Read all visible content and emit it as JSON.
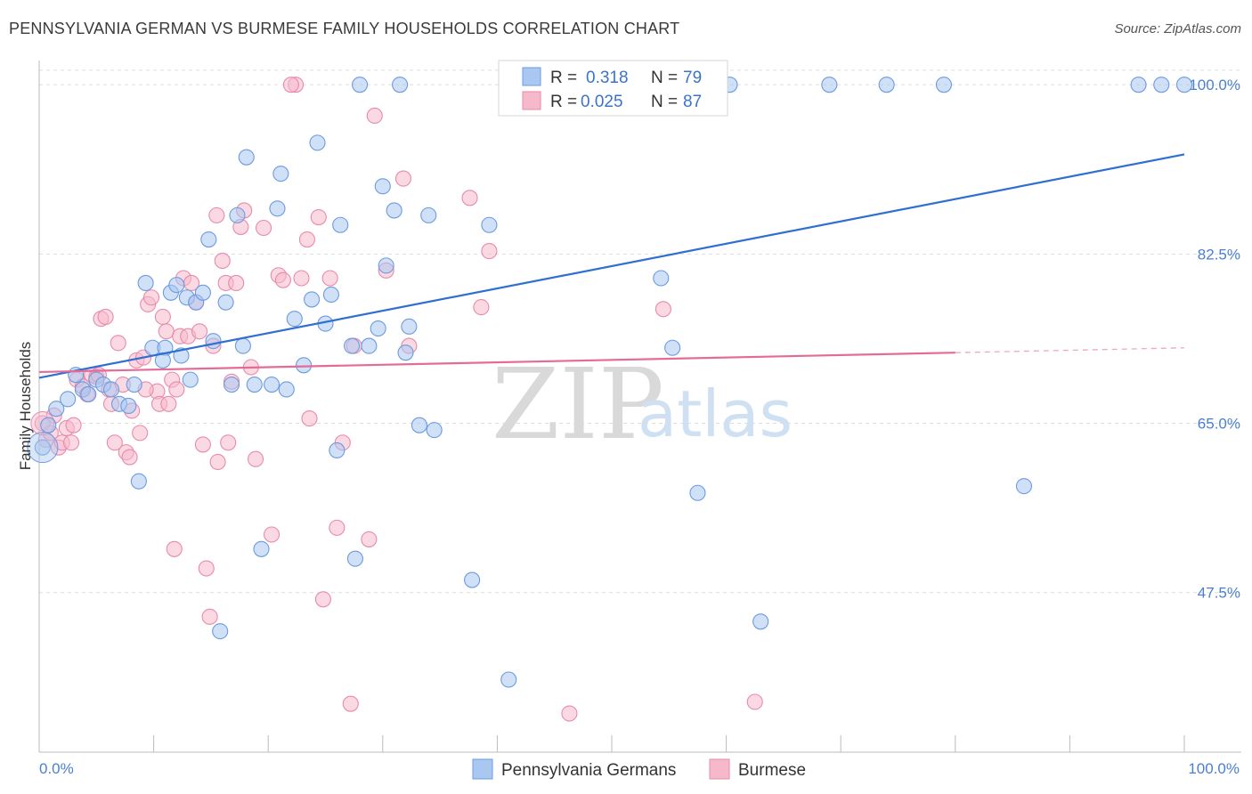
{
  "header": {
    "title": "PENNSYLVANIA GERMAN VS BURMESE FAMILY HOUSEHOLDS CORRELATION CHART",
    "source": "Source: ZipAtlas.com"
  },
  "watermark": {
    "zip": "ZIP",
    "atlas": "atlas"
  },
  "legend": {
    "r_label": "R =",
    "n_label": "N =",
    "series": [
      {
        "r": "0.318",
        "n": "79"
      },
      {
        "r": "0.025",
        "n": "87"
      }
    ]
  },
  "bottom_legend": [
    "Pennsylvania Germans",
    "Burmese"
  ],
  "colors": {
    "blue_fill": "#a9c7f0",
    "blue_stroke": "#6b9be0",
    "blue_line": "#2e6fd1",
    "pink_fill": "#f6b9cc",
    "pink_stroke": "#e98aab",
    "pink_line": "#e46b97",
    "grid": "#dddddd",
    "tick_text": "#4a7fd0"
  },
  "chart_data": {
    "type": "scatter",
    "title": "PENNSYLVANIA GERMAN VS BURMESE FAMILY HOUSEHOLDS CORRELATION CHART",
    "ylabel": "Family Households",
    "xlabel": "",
    "xlim": [
      0,
      100
    ],
    "ylim": [
      31.0,
      102.5
    ],
    "x_tick_labels": [
      "0.0%",
      "100.0%"
    ],
    "y_ticks": [
      47.5,
      65.0,
      82.5,
      100.0
    ],
    "y_tick_labels": [
      "47.5%",
      "65.0%",
      "82.5%",
      "100.0%"
    ],
    "grid": true,
    "legend_position": "top-center",
    "series": [
      {
        "name": "Pennsylvania Germans",
        "r": 0.318,
        "n": 79,
        "trend": {
          "x": [
            0,
            100
          ],
          "y": [
            69.7,
            92.8
          ]
        },
        "points": [
          [
            0.3,
            62.5
          ],
          [
            0.8,
            64.8
          ],
          [
            1.5,
            66.5
          ],
          [
            2.5,
            67.5
          ],
          [
            3.2,
            70.0
          ],
          [
            3.8,
            68.5
          ],
          [
            4.3,
            68.0
          ],
          [
            5.0,
            69.5
          ],
          [
            5.6,
            69.0
          ],
          [
            6.3,
            68.5
          ],
          [
            7.0,
            67.0
          ],
          [
            7.8,
            66.8
          ],
          [
            8.3,
            69.0
          ],
          [
            8.7,
            59.0
          ],
          [
            9.3,
            79.5
          ],
          [
            9.9,
            72.8
          ],
          [
            11.0,
            72.8
          ],
          [
            10.8,
            71.5
          ],
          [
            11.5,
            78.5
          ],
          [
            12.0,
            79.3
          ],
          [
            12.4,
            72.0
          ],
          [
            12.9,
            78.0
          ],
          [
            13.2,
            69.5
          ],
          [
            13.7,
            77.5
          ],
          [
            14.3,
            78.5
          ],
          [
            14.8,
            84.0
          ],
          [
            15.2,
            73.5
          ],
          [
            15.8,
            43.5
          ],
          [
            16.3,
            77.5
          ],
          [
            16.8,
            69.0
          ],
          [
            17.3,
            86.5
          ],
          [
            17.8,
            73.0
          ],
          [
            18.1,
            92.5
          ],
          [
            18.8,
            69.0
          ],
          [
            19.4,
            52.0
          ],
          [
            20.3,
            69.0
          ],
          [
            20.8,
            87.2
          ],
          [
            21.1,
            90.8
          ],
          [
            21.6,
            68.5
          ],
          [
            22.3,
            75.8
          ],
          [
            23.1,
            71.0
          ],
          [
            23.8,
            77.8
          ],
          [
            24.3,
            94.0
          ],
          [
            25.0,
            75.3
          ],
          [
            25.5,
            78.3
          ],
          [
            26.3,
            85.5
          ],
          [
            26.0,
            62.2
          ],
          [
            27.3,
            73.0
          ],
          [
            27.6,
            51.0
          ],
          [
            28.0,
            100.0
          ],
          [
            28.8,
            73.0
          ],
          [
            29.6,
            74.8
          ],
          [
            30.0,
            89.5
          ],
          [
            30.3,
            81.3
          ],
          [
            31.0,
            87.0
          ],
          [
            31.5,
            100.0
          ],
          [
            32.0,
            72.3
          ],
          [
            32.3,
            75.0
          ],
          [
            33.2,
            64.8
          ],
          [
            34.0,
            86.5
          ],
          [
            34.5,
            64.3
          ],
          [
            37.8,
            48.8
          ],
          [
            39.3,
            85.5
          ],
          [
            41.0,
            38.5
          ],
          [
            41.3,
            100.0
          ],
          [
            46.5,
            100.0
          ],
          [
            50.5,
            100.0
          ],
          [
            54.3,
            80.0
          ],
          [
            55.3,
            72.8
          ],
          [
            57.5,
            57.8
          ],
          [
            60.3,
            100.0
          ],
          [
            63.0,
            44.5
          ],
          [
            69.0,
            100.0
          ],
          [
            74.0,
            100.0
          ],
          [
            79.0,
            100.0
          ],
          [
            86.0,
            58.5
          ],
          [
            96.0,
            100.0
          ],
          [
            98.0,
            100.0
          ],
          [
            100.0,
            100.0
          ]
        ]
      },
      {
        "name": "Burmese",
        "r": 0.025,
        "n": 87,
        "trend": {
          "x": [
            0,
            80
          ],
          "y": [
            70.3,
            72.3
          ]
        },
        "trend_dashed": {
          "x": [
            80,
            100
          ],
          "y": [
            72.3,
            72.8
          ]
        },
        "points": [
          [
            0.3,
            65.0
          ],
          [
            0.6,
            63.3
          ],
          [
            1.0,
            64.0
          ],
          [
            1.3,
            65.8
          ],
          [
            1.7,
            62.5
          ],
          [
            2.0,
            63.0
          ],
          [
            2.4,
            64.5
          ],
          [
            2.8,
            63.0
          ],
          [
            3.3,
            69.5
          ],
          [
            3.8,
            68.8
          ],
          [
            4.2,
            68.0
          ],
          [
            4.6,
            70.0
          ],
          [
            5.0,
            69.8
          ],
          [
            5.4,
            75.8
          ],
          [
            5.8,
            76.0
          ],
          [
            6.3,
            67.0
          ],
          [
            6.6,
            63.0
          ],
          [
            6.9,
            73.3
          ],
          [
            7.3,
            69.0
          ],
          [
            7.6,
            62.0
          ],
          [
            7.9,
            61.5
          ],
          [
            8.1,
            66.3
          ],
          [
            8.5,
            71.5
          ],
          [
            8.8,
            64.0
          ],
          [
            9.1,
            71.8
          ],
          [
            9.5,
            77.3
          ],
          [
            9.8,
            78.0
          ],
          [
            10.3,
            68.3
          ],
          [
            10.5,
            67.0
          ],
          [
            10.8,
            76.0
          ],
          [
            11.1,
            74.5
          ],
          [
            11.3,
            67.0
          ],
          [
            11.6,
            69.5
          ],
          [
            11.8,
            52.0
          ],
          [
            12.3,
            74.0
          ],
          [
            12.6,
            80.0
          ],
          [
            13.0,
            74.0
          ],
          [
            13.3,
            79.5
          ],
          [
            13.7,
            77.5
          ],
          [
            14.0,
            74.5
          ],
          [
            14.3,
            62.8
          ],
          [
            14.6,
            50.0
          ],
          [
            14.9,
            45.0
          ],
          [
            15.2,
            73.0
          ],
          [
            15.5,
            86.5
          ],
          [
            15.6,
            61.0
          ],
          [
            16.0,
            81.8
          ],
          [
            16.3,
            79.5
          ],
          [
            16.8,
            69.3
          ],
          [
            17.2,
            79.5
          ],
          [
            17.6,
            85.3
          ],
          [
            17.9,
            87.0
          ],
          [
            18.5,
            70.8
          ],
          [
            18.9,
            61.3
          ],
          [
            19.6,
            85.2
          ],
          [
            20.3,
            53.5
          ],
          [
            20.9,
            80.3
          ],
          [
            21.3,
            79.8
          ],
          [
            22.4,
            100.0
          ],
          [
            22.9,
            80.0
          ],
          [
            23.4,
            84.0
          ],
          [
            23.6,
            65.5
          ],
          [
            24.4,
            86.3
          ],
          [
            24.8,
            46.8
          ],
          [
            25.4,
            80.0
          ],
          [
            26.0,
            54.2
          ],
          [
            26.5,
            63.0
          ],
          [
            27.2,
            36.0
          ],
          [
            27.5,
            73.0
          ],
          [
            28.8,
            53.0
          ],
          [
            29.3,
            96.8
          ],
          [
            30.3,
            80.8
          ],
          [
            31.8,
            90.3
          ],
          [
            32.3,
            73.0
          ],
          [
            37.6,
            88.3
          ],
          [
            38.6,
            77.0
          ],
          [
            39.3,
            82.8
          ],
          [
            46.3,
            35.0
          ],
          [
            54.5,
            76.8
          ],
          [
            62.5,
            36.2
          ],
          [
            22.0,
            100.0
          ],
          [
            5.2,
            70.0
          ],
          [
            3.0,
            64.8
          ],
          [
            9.3,
            68.5
          ],
          [
            6.1,
            68.5
          ],
          [
            12.0,
            68.5
          ],
          [
            16.5,
            63.0
          ]
        ]
      }
    ]
  }
}
